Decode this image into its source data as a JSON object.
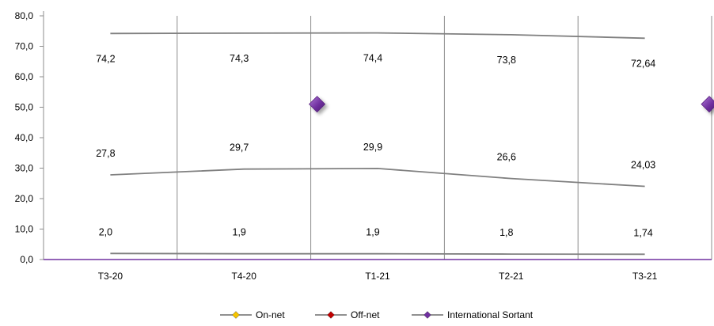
{
  "chart_data": {
    "type": "line",
    "categories": [
      "T3-20",
      "T4-20",
      "T1-21",
      "T2-21",
      "T3-21"
    ],
    "ylim": [
      0,
      80
    ],
    "y_ticks": [
      "0,0",
      "10,0",
      "20,0",
      "30,0",
      "40,0",
      "50,0",
      "60,0",
      "70,0",
      "80,0"
    ],
    "grid": "vertical lines between categories",
    "legend_position": "bottom",
    "series": [
      {
        "name": "On-net",
        "values": [
          74.2,
          74.3,
          74.4,
          73.8,
          72.64
        ],
        "labels": [
          "74,2",
          "74,3",
          "74,4",
          "73,8",
          "72,64"
        ],
        "line_color": "#808080",
        "marker_color": "#f5c400"
      },
      {
        "name": "Off-net",
        "values": [
          27.8,
          29.7,
          29.9,
          26.6,
          24.03
        ],
        "labels": [
          "27,8",
          "29,7",
          "29,9",
          "26,6",
          "24,03"
        ],
        "line_color": "#808080",
        "marker_color": "#c00000"
      },
      {
        "name": "International Sortant",
        "values": [
          2.0,
          1.9,
          1.9,
          1.8,
          1.74
        ],
        "labels": [
          "2,0",
          "1,9",
          "1,9",
          "1,8",
          "1,74"
        ],
        "line_color": "#808080",
        "marker_color": "#7030a0"
      }
    ],
    "annotations": [
      {
        "kind": "diamond-marker",
        "color": "#7030a0",
        "x_between": [
          "T4-20",
          "T1-21"
        ],
        "y": 51
      },
      {
        "kind": "diamond-marker",
        "color": "#7030a0",
        "x_between": [
          "T3-21",
          "end"
        ],
        "y": 51
      }
    ]
  }
}
